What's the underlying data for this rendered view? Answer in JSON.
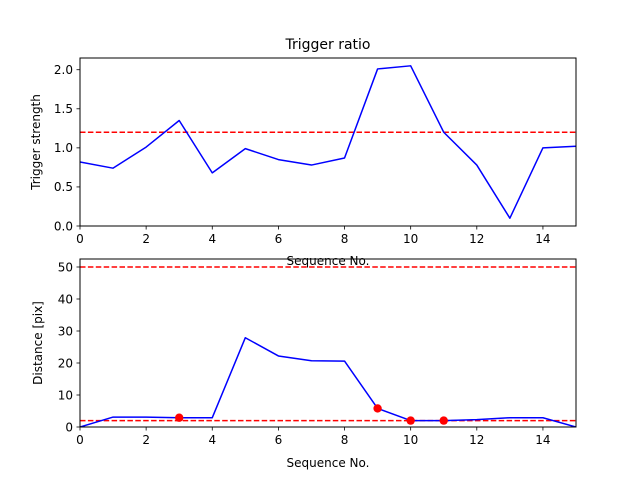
{
  "chart_data": [
    {
      "type": "line",
      "title": "Trigger ratio",
      "xlabel": "Sequence No.",
      "ylabel": "Trigger strength",
      "xlim": [
        0,
        15
      ],
      "ylim": [
        0,
        2.15
      ],
      "xticks": [
        0,
        2,
        4,
        6,
        8,
        10,
        12,
        14
      ],
      "yticks": [
        0.0,
        0.5,
        1.0,
        1.5,
        2.0
      ],
      "ytick_labels": [
        "0.0",
        "0.5",
        "1.0",
        "1.5",
        "2.0"
      ],
      "series": [
        {
          "color": "#0000ff",
          "x": [
            0,
            1,
            2,
            3,
            4,
            5,
            6,
            7,
            8,
            9,
            10,
            11,
            12,
            13,
            14,
            15
          ],
          "values": [
            0.82,
            0.74,
            1.01,
            1.35,
            0.68,
            0.99,
            0.85,
            0.78,
            0.87,
            2.01,
            2.05,
            1.2,
            0.78,
            0.1,
            1.0,
            1.02
          ]
        }
      ],
      "hlines": [
        {
          "y": 1.2,
          "color": "#ff0000",
          "style": "dashed"
        }
      ],
      "grid": false
    },
    {
      "type": "line",
      "title": "",
      "xlabel": "Sequence No.",
      "ylabel": "Distance [pix]",
      "xlim": [
        0,
        15
      ],
      "ylim": [
        0,
        52.5
      ],
      "xticks": [
        0,
        2,
        4,
        6,
        8,
        10,
        12,
        14
      ],
      "yticks": [
        0,
        10,
        20,
        30,
        40,
        50
      ],
      "ytick_labels": [
        "0",
        "10",
        "20",
        "30",
        "40",
        "50"
      ],
      "series": [
        {
          "color": "#0000ff",
          "x": [
            0,
            1,
            2,
            3,
            4,
            5,
            6,
            7,
            8,
            9,
            10,
            11,
            12,
            13,
            14,
            15
          ],
          "values": [
            0,
            3.1,
            3.1,
            2.9,
            2.9,
            27.9,
            22.2,
            20.7,
            20.6,
            5.8,
            2.0,
            2.0,
            2.3,
            2.9,
            2.9,
            0
          ]
        }
      ],
      "markers": {
        "color": "#ff0000",
        "x": [
          3,
          9,
          10,
          11
        ],
        "values": [
          2.9,
          5.8,
          2.0,
          2.0
        ]
      },
      "hlines": [
        {
          "y": 50,
          "color": "#ff0000",
          "style": "dashed"
        },
        {
          "y": 2,
          "color": "#ff0000",
          "style": "dashed"
        }
      ],
      "grid": false
    }
  ]
}
